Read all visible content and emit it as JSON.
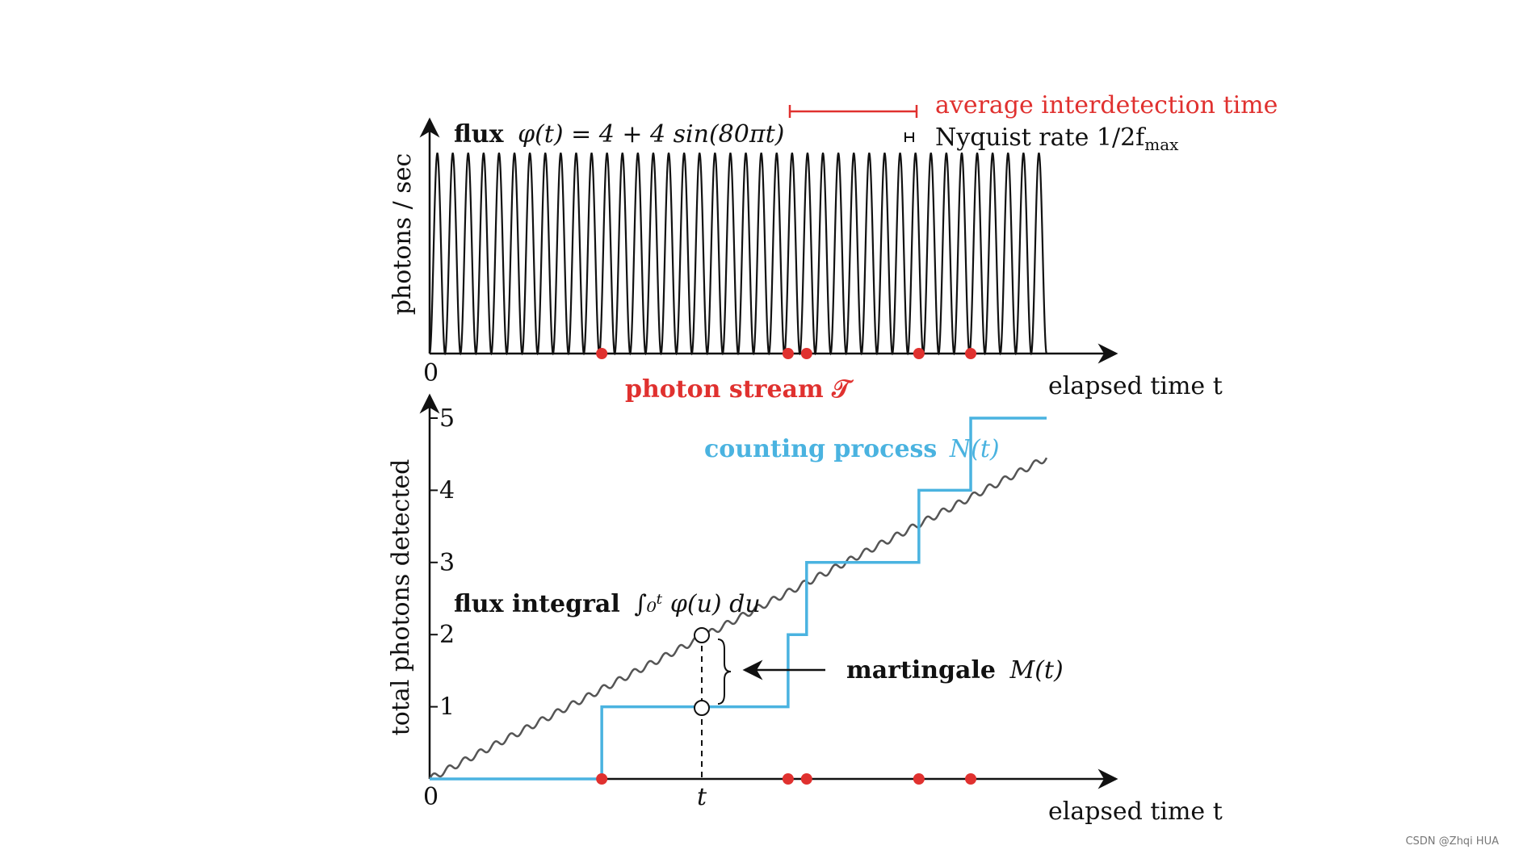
{
  "colors": {
    "red": "#e0312f",
    "blue": "#4ab3e0",
    "black": "#111111"
  },
  "top": {
    "flux_bold": "flux",
    "flux_formula": "φ(t) = 4 + 4 sin(80πt)",
    "ylabel": "photons / sec",
    "xlabel": "elapsed time t",
    "origin": "0",
    "stream_label": "photon stream 𝒯",
    "avg_label": "average interdetection time",
    "nyquist_label": "Nyquist rate 1/2f",
    "nyquist_sub": "max"
  },
  "bottom": {
    "ylabel": "total photons detected",
    "xlabel": "elapsed time t",
    "origin": "0",
    "y_ticks": [
      "1",
      "2",
      "3",
      "4",
      "5"
    ],
    "t_label": "t",
    "counting_bold": "counting process",
    "counting_formula": "N(t)",
    "integral_bold": "flux integral",
    "integral_formula": "∫₀ᵗ φ(u) du",
    "martingale_bold": "martingale",
    "martingale_formula": "M(t)"
  },
  "chart_data": {
    "type": "line",
    "flux": {
      "base": 4,
      "amp": 4,
      "omega": "80π"
    },
    "photon_times": [
      0.279,
      0.581,
      0.611,
      0.793,
      0.877
    ],
    "counts": [
      1,
      2,
      3,
      4,
      5
    ],
    "ylim": [
      0,
      5
    ]
  },
  "watermark": "CSDN @Zhqi HUA"
}
